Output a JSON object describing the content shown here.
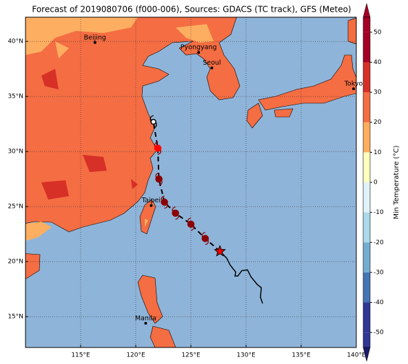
{
  "map": {
    "title": "Forecast of 2019080706 (f000-006), Sources: GDACS (TC track), GFS (Meteo)",
    "xlim": [
      110,
      140
    ],
    "ylim": [
      12.2,
      42.2
    ],
    "xticks": [
      {
        "value": 115,
        "label": "115°E"
      },
      {
        "value": 120,
        "label": "120°E"
      },
      {
        "value": 125,
        "label": "125°E"
      },
      {
        "value": 130,
        "label": "130°E"
      },
      {
        "value": 135,
        "label": "135°E"
      },
      {
        "value": 140,
        "label": "140°E"
      }
    ],
    "yticks": [
      {
        "value": 15,
        "label": "15°N"
      },
      {
        "value": 20,
        "label": "20°N"
      },
      {
        "value": 25,
        "label": "25°N"
      },
      {
        "value": 30,
        "label": "30°N"
      },
      {
        "value": 35,
        "label": "35°N"
      },
      {
        "value": 40,
        "label": "40°N"
      }
    ],
    "grid": true,
    "cities": [
      {
        "name": "Beijing",
        "lon": 116.3,
        "lat": 39.9
      },
      {
        "name": "Pyongyang",
        "lon": 125.7,
        "lat": 39.0
      },
      {
        "name": "Seoul",
        "lon": 126.9,
        "lat": 37.6
      },
      {
        "name": "Tokyo",
        "lon": 139.75,
        "lat": 35.7
      },
      {
        "name": "Taipei",
        "lon": 121.4,
        "lat": 25.1
      },
      {
        "name": "Manila",
        "lon": 120.9,
        "lat": 14.4
      }
    ],
    "past_track": {
      "lon": [
        131.5,
        131.31,
        131.38,
        131.0,
        130.44,
        130.13,
        129.63,
        129.25,
        129.0,
        129.06,
        128.56,
        128.25,
        127.94,
        127.63
      ],
      "lat": [
        16.2,
        16.75,
        17.63,
        17.94,
        18.63,
        19.25,
        19.19,
        18.69,
        18.69,
        19.06,
        19.69,
        20.31,
        20.63,
        20.94
      ]
    },
    "forecast": {
      "lon": [
        127.63,
        126.3,
        125.0,
        123.6,
        122.6,
        122.1,
        122.0,
        121.6
      ],
      "lat": [
        20.94,
        22.1,
        23.4,
        24.4,
        25.4,
        27.5,
        30.3,
        32.7
      ]
    },
    "colorbar": {
      "label": "Min Temperature (°C)",
      "lim": [
        -55,
        55
      ],
      "ticks": [
        -50,
        -40,
        -30,
        -20,
        -10,
        0,
        10,
        20,
        30,
        40,
        50
      ],
      "colors": [
        "#313695",
        "#4575b4",
        "#74add1",
        "#abd9e9",
        "#e0f3f8",
        "#ffffbf",
        "#fdae61",
        "#f46d43",
        "#d73027",
        "#a50026"
      ]
    }
  }
}
